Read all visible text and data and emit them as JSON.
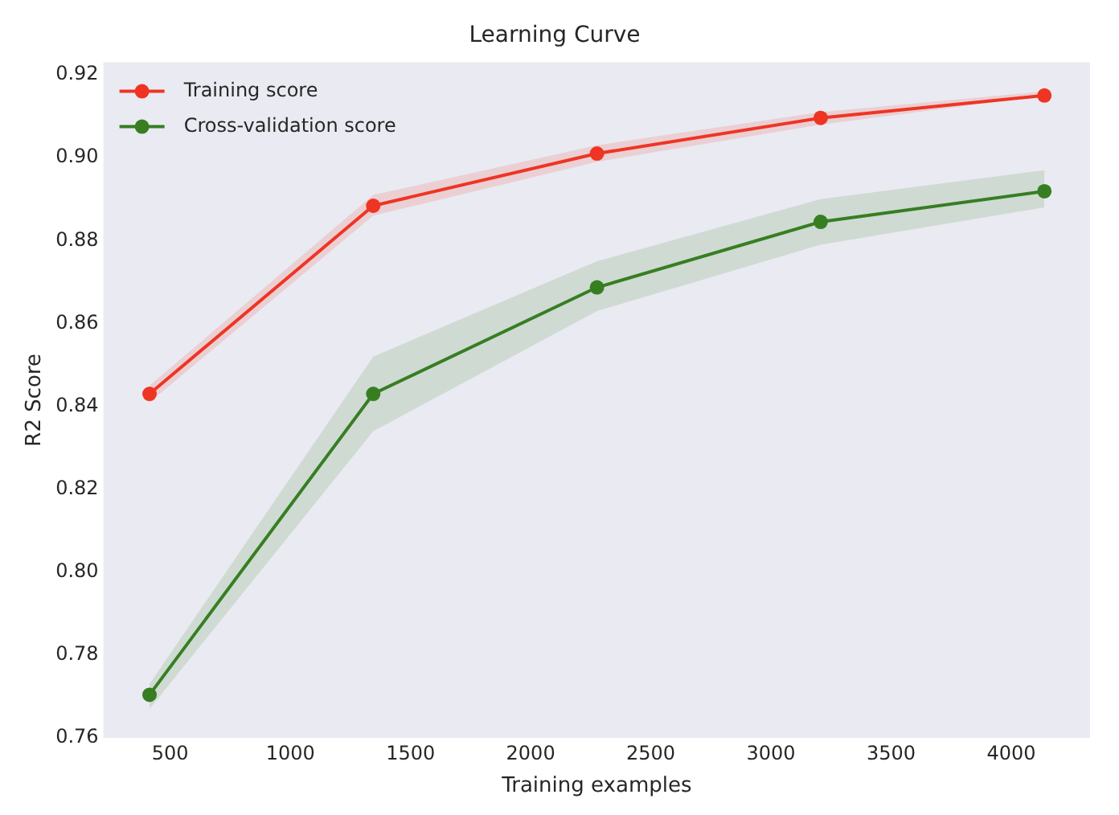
{
  "chart_data": {
    "type": "line",
    "title": "Learning Curve",
    "xlabel": "Training examples",
    "ylabel": "R2 Score",
    "x": [
      414,
      1345,
      2276,
      3207,
      4138
    ],
    "series": [
      {
        "name": "Training score",
        "color": "#ee3524",
        "values": [
          0.843,
          0.8884,
          0.901,
          0.9096,
          0.915
        ],
        "lower": [
          0.841,
          0.886,
          0.899,
          0.908,
          0.915
        ],
        "upper": [
          0.845,
          0.891,
          0.903,
          0.911,
          0.916
        ]
      },
      {
        "name": "Cross-validation score",
        "color": "#377e22",
        "values": [
          0.7704,
          0.843,
          0.8687,
          0.8845,
          0.8919
        ],
        "lower": [
          0.767,
          0.834,
          0.863,
          0.879,
          0.888
        ],
        "upper": [
          0.773,
          0.852,
          0.875,
          0.89,
          0.897
        ]
      }
    ],
    "xlim": [
      222,
      4328
    ],
    "xticks": [
      500,
      1000,
      1500,
      2000,
      2500,
      3000,
      3500,
      4000
    ],
    "ylim": [
      0.76,
      0.923
    ],
    "yticks": [
      {
        "value": 0.76,
        "label": "0.76"
      },
      {
        "value": 0.78,
        "label": "0.78"
      },
      {
        "value": 0.8,
        "label": "0.80"
      },
      {
        "value": 0.82,
        "label": "0.82"
      },
      {
        "value": 0.84,
        "label": "0.84"
      },
      {
        "value": 0.86,
        "label": "0.86"
      },
      {
        "value": 0.88,
        "label": "0.88"
      },
      {
        "value": 0.9,
        "label": "0.90"
      },
      {
        "value": 0.92,
        "label": "0.92"
      }
    ],
    "grid": false,
    "legend": "top left",
    "marker": "circle",
    "line_style": "solid"
  }
}
